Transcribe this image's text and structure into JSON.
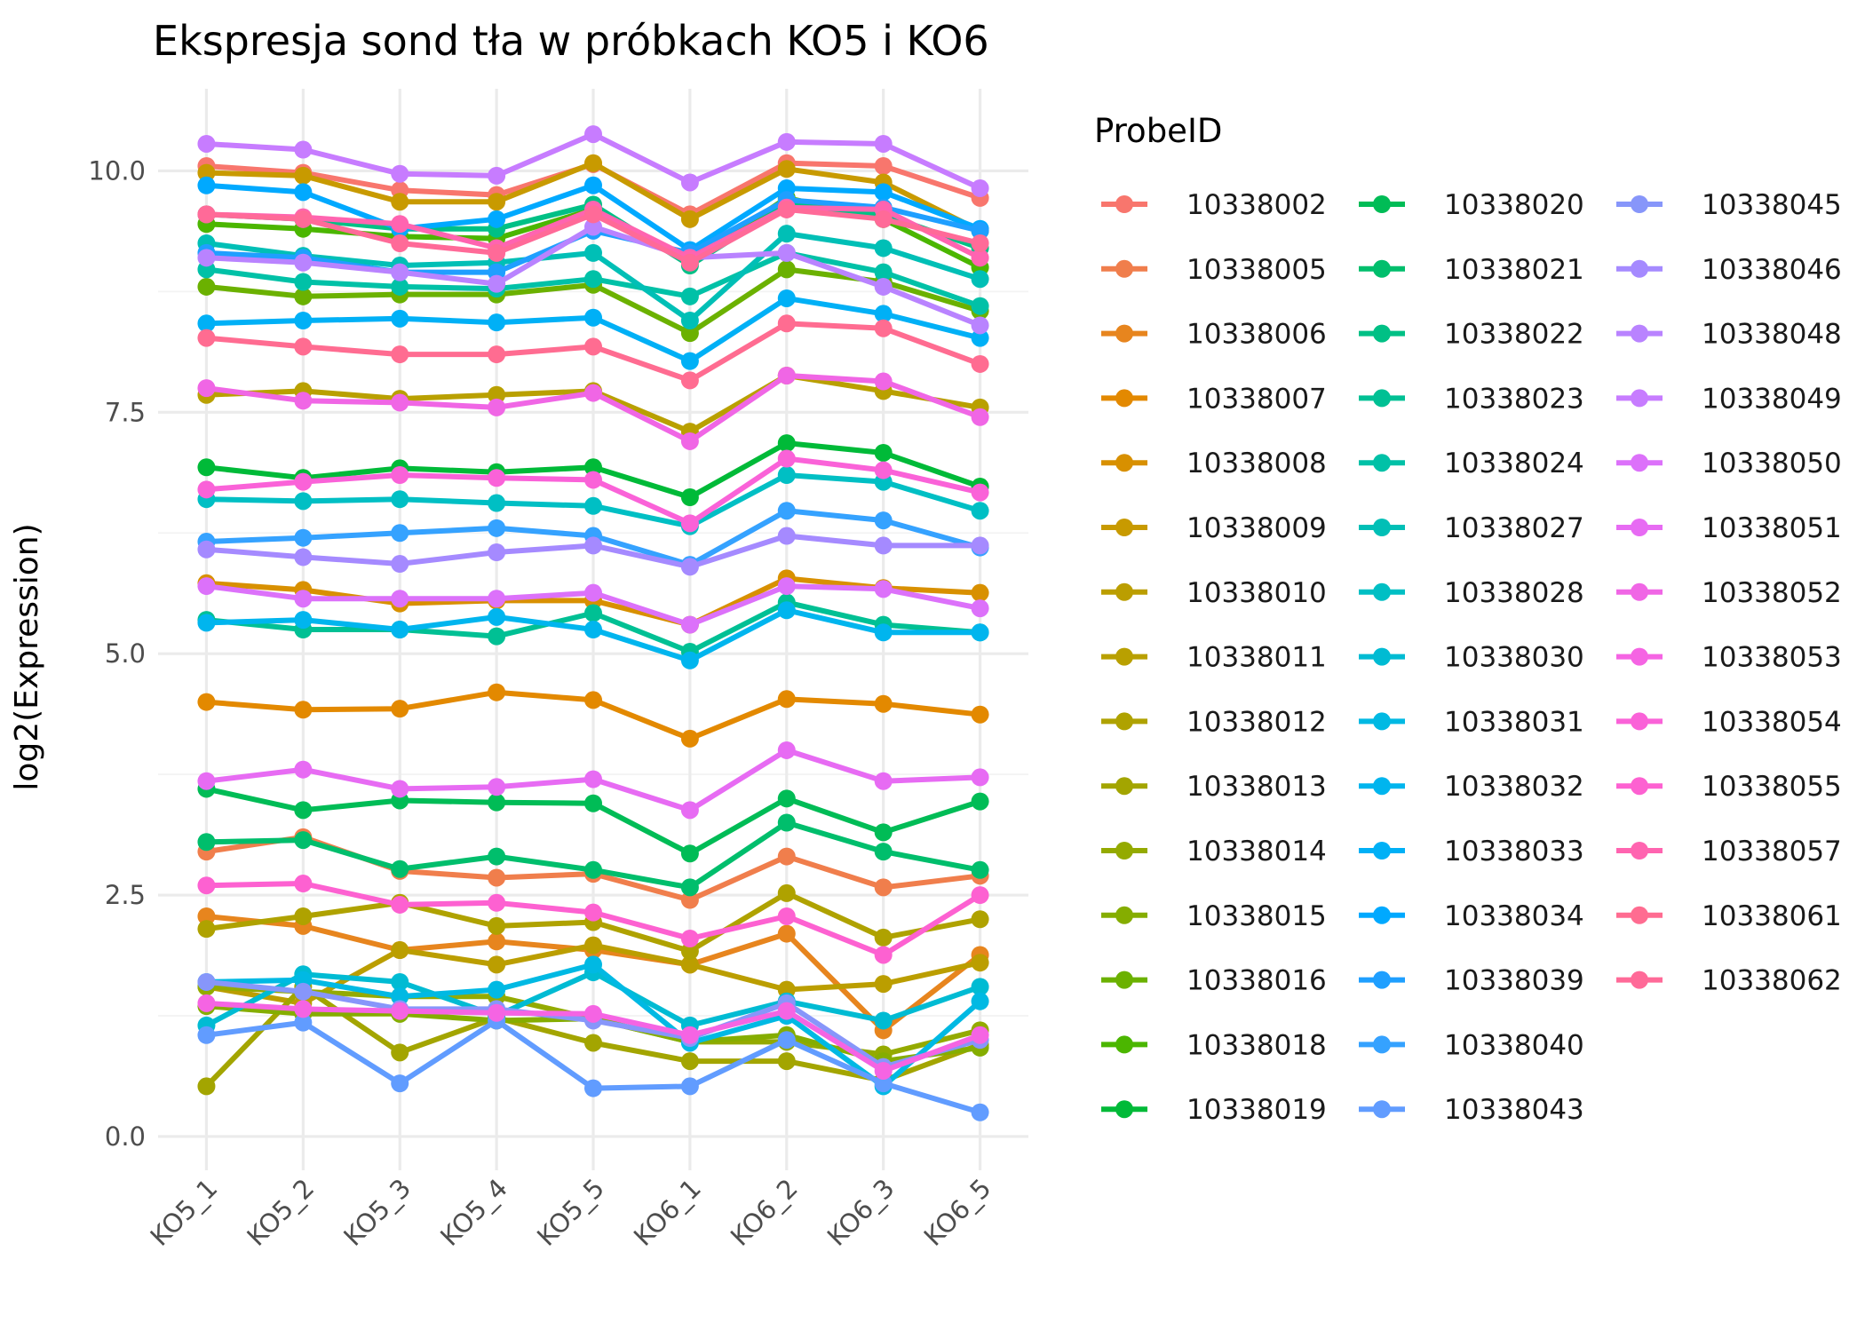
{
  "chart_data": {
    "type": "line",
    "title": "Ekspresja sond tła w próbkach KO5 i KO6",
    "xlabel": "",
    "ylabel": "log2(Expression)",
    "ylim": [
      -0.35,
      10.85
    ],
    "yticks": [
      0.0,
      2.5,
      5.0,
      7.5,
      10.0
    ],
    "ytick_labels": [
      "0.0",
      "2.5",
      "5.0",
      "7.5",
      "10.0"
    ],
    "grid": true,
    "legend_title": "ProbeID",
    "legend_position": "right",
    "categories": [
      "KO5_1",
      "KO5_2",
      "KO5_3",
      "KO5_4",
      "KO5_5",
      "KO6_1",
      "KO6_2",
      "KO6_3",
      "KO6_5"
    ],
    "series": [
      {
        "name": "10338002",
        "color": "#F8766D",
        "values": [
          10.05,
          9.98,
          9.8,
          9.75,
          10.07,
          9.55,
          10.08,
          10.05,
          9.72
        ]
      },
      {
        "name": "10338005",
        "color": "#F07E4C",
        "values": [
          2.95,
          3.1,
          2.75,
          2.68,
          2.72,
          2.45,
          2.9,
          2.58,
          2.7
        ]
      },
      {
        "name": "10338006",
        "color": "#E7851E",
        "values": [
          2.28,
          2.18,
          1.93,
          2.02,
          1.93,
          1.78,
          2.1,
          1.1,
          1.88
        ]
      },
      {
        "name": "10338007",
        "color": "#E38900",
        "values": [
          4.5,
          4.42,
          4.43,
          4.6,
          4.52,
          4.12,
          4.53,
          4.48,
          4.37
        ]
      },
      {
        "name": "10338008",
        "color": "#D89000",
        "values": [
          5.73,
          5.66,
          5.52,
          5.55,
          5.55,
          5.3,
          5.78,
          5.68,
          5.63
        ]
      },
      {
        "name": "10338009",
        "color": "#C89A00",
        "values": [
          9.98,
          9.95,
          9.68,
          9.68,
          10.08,
          9.5,
          10.02,
          9.88,
          9.38
        ]
      },
      {
        "name": "10338010",
        "color": "#BB9E00",
        "values": [
          1.55,
          1.38,
          1.93,
          1.78,
          1.98,
          1.78,
          1.52,
          1.58,
          1.8
        ]
      },
      {
        "name": "10338011",
        "color": "#B9A000",
        "values": [
          7.68,
          7.72,
          7.64,
          7.68,
          7.72,
          7.3,
          7.88,
          7.72,
          7.55
        ]
      },
      {
        "name": "10338012",
        "color": "#AFA200",
        "values": [
          2.15,
          2.28,
          2.42,
          2.18,
          2.22,
          1.92,
          2.52,
          2.06,
          2.25
        ]
      },
      {
        "name": "10338013",
        "color": "#A3A500",
        "values": [
          0.52,
          1.55,
          0.87,
          1.23,
          0.97,
          0.78,
          0.78,
          0.58,
          0.95
        ]
      },
      {
        "name": "10338014",
        "color": "#94AA00",
        "values": [
          1.55,
          1.5,
          1.45,
          1.45,
          1.22,
          0.98,
          0.98,
          0.85,
          1.1
        ]
      },
      {
        "name": "10338015",
        "color": "#85AD00",
        "values": [
          1.35,
          1.27,
          1.27,
          1.2,
          1.22,
          0.98,
          1.05,
          0.78,
          0.92
        ]
      },
      {
        "name": "10338016",
        "color": "#6BB100",
        "values": [
          8.8,
          8.7,
          8.72,
          8.72,
          8.82,
          8.32,
          8.98,
          8.85,
          8.55
        ]
      },
      {
        "name": "10338018",
        "color": "#4BB600",
        "values": [
          9.45,
          9.4,
          9.32,
          9.3,
          9.6,
          9.05,
          9.72,
          9.5,
          9.0
        ]
      },
      {
        "name": "10338019",
        "color": "#00BA38",
        "values": [
          6.93,
          6.82,
          6.92,
          6.88,
          6.93,
          6.62,
          7.18,
          7.08,
          6.73
        ]
      },
      {
        "name": "10338020",
        "color": "#00BC56",
        "values": [
          3.6,
          3.38,
          3.48,
          3.46,
          3.45,
          2.93,
          3.5,
          3.15,
          3.47
        ]
      },
      {
        "name": "10338021",
        "color": "#00BE6C",
        "values": [
          3.05,
          3.07,
          2.77,
          2.9,
          2.76,
          2.58,
          3.25,
          2.95,
          2.76
        ]
      },
      {
        "name": "10338022",
        "color": "#00C085",
        "values": [
          9.55,
          9.5,
          9.4,
          9.4,
          9.65,
          9.02,
          9.65,
          9.55,
          9.2
        ]
      },
      {
        "name": "10338023",
        "color": "#00C094",
        "values": [
          5.35,
          5.25,
          5.25,
          5.18,
          5.42,
          5.02,
          5.53,
          5.3,
          5.22
        ]
      },
      {
        "name": "10338024",
        "color": "#00C1A7",
        "values": [
          8.98,
          8.85,
          8.8,
          8.78,
          8.88,
          8.7,
          9.15,
          8.95,
          8.6
        ]
      },
      {
        "name": "10338027",
        "color": "#00BFB6",
        "values": [
          9.25,
          9.12,
          9.02,
          9.05,
          9.15,
          8.45,
          9.35,
          9.2,
          8.88
        ]
      },
      {
        "name": "10338028",
        "color": "#00BFC4",
        "values": [
          6.6,
          6.58,
          6.6,
          6.56,
          6.53,
          6.32,
          6.85,
          6.78,
          6.48
        ]
      },
      {
        "name": "10338030",
        "color": "#00BBD3",
        "values": [
          1.15,
          1.68,
          1.6,
          1.25,
          1.7,
          1.15,
          1.4,
          1.2,
          1.55
        ]
      },
      {
        "name": "10338031",
        "color": "#00B9E3",
        "values": [
          1.6,
          1.62,
          1.45,
          1.52,
          1.78,
          0.97,
          1.25,
          0.52,
          1.4
        ]
      },
      {
        "name": "10338032",
        "color": "#00B5EE",
        "values": [
          5.32,
          5.35,
          5.25,
          5.38,
          5.25,
          4.93,
          5.45,
          5.22,
          5.22
        ]
      },
      {
        "name": "10338033",
        "color": "#00B0F6",
        "values": [
          8.42,
          8.45,
          8.47,
          8.43,
          8.48,
          8.03,
          8.68,
          8.52,
          8.27
        ]
      },
      {
        "name": "10338034",
        "color": "#00A9FF",
        "values": [
          9.85,
          9.78,
          9.4,
          9.5,
          9.85,
          9.18,
          9.82,
          9.78,
          9.4
        ]
      },
      {
        "name": "10338039",
        "color": "#1F9FFF",
        "values": [
          9.15,
          9.1,
          8.95,
          8.95,
          9.38,
          9.15,
          9.7,
          9.62,
          9.38
        ]
      },
      {
        "name": "10338040",
        "color": "#35A2FF",
        "values": [
          6.16,
          6.2,
          6.25,
          6.3,
          6.22,
          5.92,
          6.48,
          6.38,
          6.1
        ]
      },
      {
        "name": "10338043",
        "color": "#619CFF",
        "values": [
          1.05,
          1.18,
          0.55,
          1.2,
          0.5,
          0.52,
          1.0,
          0.55,
          0.25
        ]
      },
      {
        "name": "10338045",
        "color": "#8796FA",
        "values": [
          1.6,
          1.5,
          1.32,
          1.32,
          1.2,
          1.02,
          1.38,
          0.72,
          1.0
        ]
      },
      {
        "name": "10338046",
        "color": "#A58AFF",
        "values": [
          6.08,
          6.0,
          5.93,
          6.05,
          6.12,
          5.9,
          6.22,
          6.12,
          6.12
        ]
      },
      {
        "name": "10338048",
        "color": "#B983FF",
        "values": [
          9.1,
          9.05,
          8.95,
          8.83,
          9.42,
          9.1,
          9.15,
          8.8,
          8.4
        ]
      },
      {
        "name": "10338049",
        "color": "#C77CFF",
        "values": [
          10.28,
          10.22,
          9.97,
          9.95,
          10.38,
          9.88,
          10.3,
          10.28,
          9.82
        ]
      },
      {
        "name": "10338050",
        "color": "#DC71FA",
        "values": [
          5.7,
          5.57,
          5.57,
          5.57,
          5.63,
          5.3,
          5.7,
          5.67,
          5.47
        ]
      },
      {
        "name": "10338051",
        "color": "#E76BF3",
        "values": [
          3.68,
          3.8,
          3.6,
          3.62,
          3.7,
          3.38,
          4.0,
          3.68,
          3.72
        ]
      },
      {
        "name": "10338052",
        "color": "#F066E5",
        "values": [
          7.75,
          7.62,
          7.6,
          7.55,
          7.7,
          7.2,
          7.88,
          7.82,
          7.45
        ]
      },
      {
        "name": "10338053",
        "color": "#F564E3",
        "values": [
          1.38,
          1.32,
          1.3,
          1.28,
          1.27,
          1.05,
          1.3,
          0.68,
          1.05
        ]
      },
      {
        "name": "10338054",
        "color": "#FA62D8",
        "values": [
          6.7,
          6.78,
          6.85,
          6.82,
          6.8,
          6.35,
          7.02,
          6.9,
          6.67
        ]
      },
      {
        "name": "10338055",
        "color": "#FD61D1",
        "values": [
          2.6,
          2.62,
          2.4,
          2.42,
          2.32,
          2.05,
          2.28,
          1.88,
          2.5
        ]
      },
      {
        "name": "10338057",
        "color": "#FF64B0",
        "values": [
          9.55,
          9.52,
          9.45,
          9.2,
          9.6,
          9.1,
          9.62,
          9.6,
          9.1
        ]
      },
      {
        "name": "10338061",
        "color": "#FF6C91",
        "values": [
          8.27,
          8.18,
          8.1,
          8.1,
          8.18,
          7.83,
          8.42,
          8.37,
          8.0
        ]
      },
      {
        "name": "10338062",
        "color": "#FF6A98",
        "values": [
          9.55,
          9.5,
          9.25,
          9.15,
          9.55,
          9.05,
          9.6,
          9.5,
          9.25
        ]
      }
    ]
  }
}
